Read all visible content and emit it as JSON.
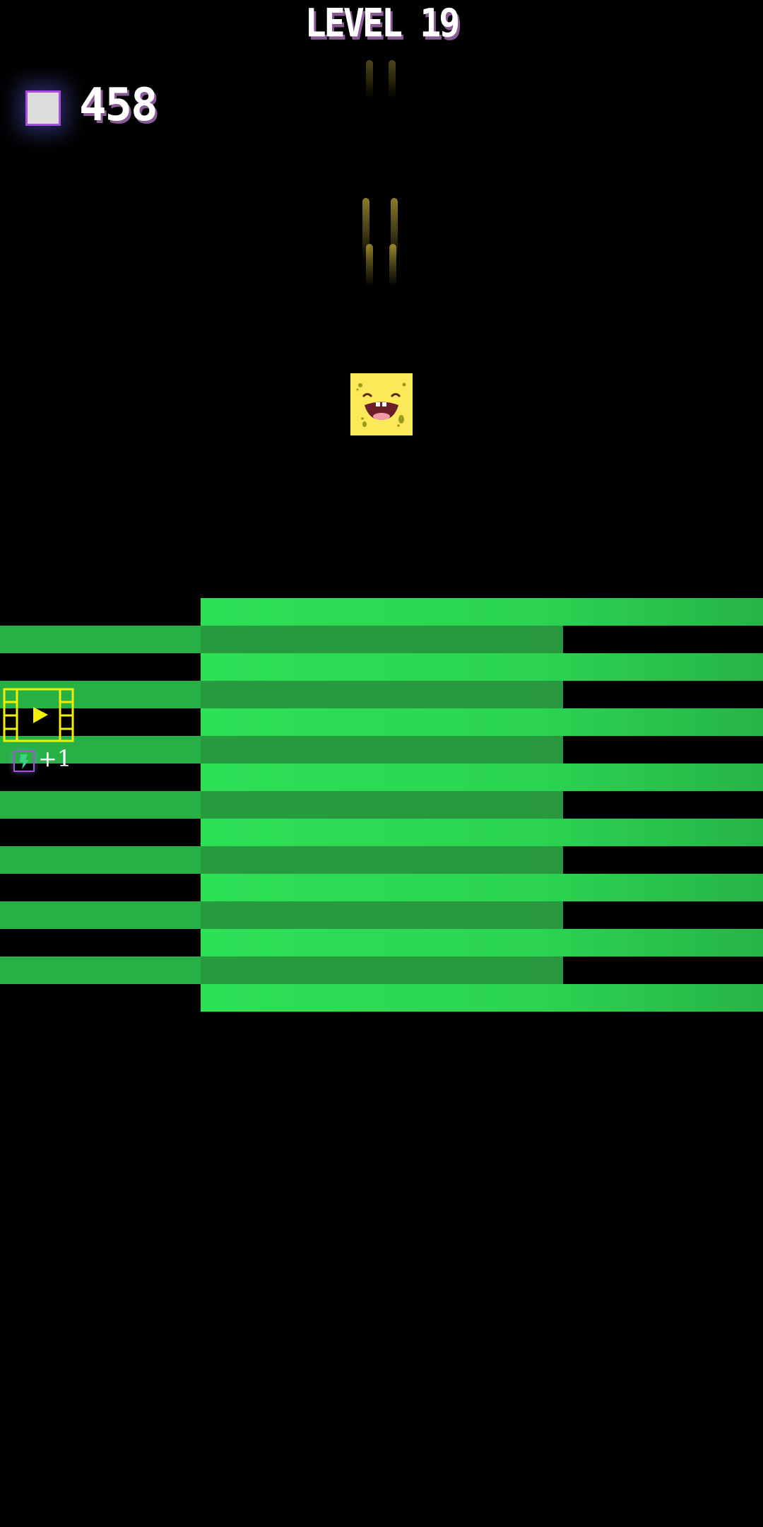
{
  "hud": {
    "level_label": "LEVEL 19",
    "coins": "458",
    "coin_icon": "square-gem-icon"
  },
  "player": {
    "icon": "laughing-yellow-square-face"
  },
  "reward": {
    "video_icon": "film-play-icon",
    "energy_icon": "lightning-icon",
    "bonus": "+1"
  },
  "colors": {
    "bright_green": "#2de056",
    "dark_green": "#279b3d",
    "player": "#fbe95a",
    "video": "#f5f000",
    "accent": "#a64ee0"
  }
}
